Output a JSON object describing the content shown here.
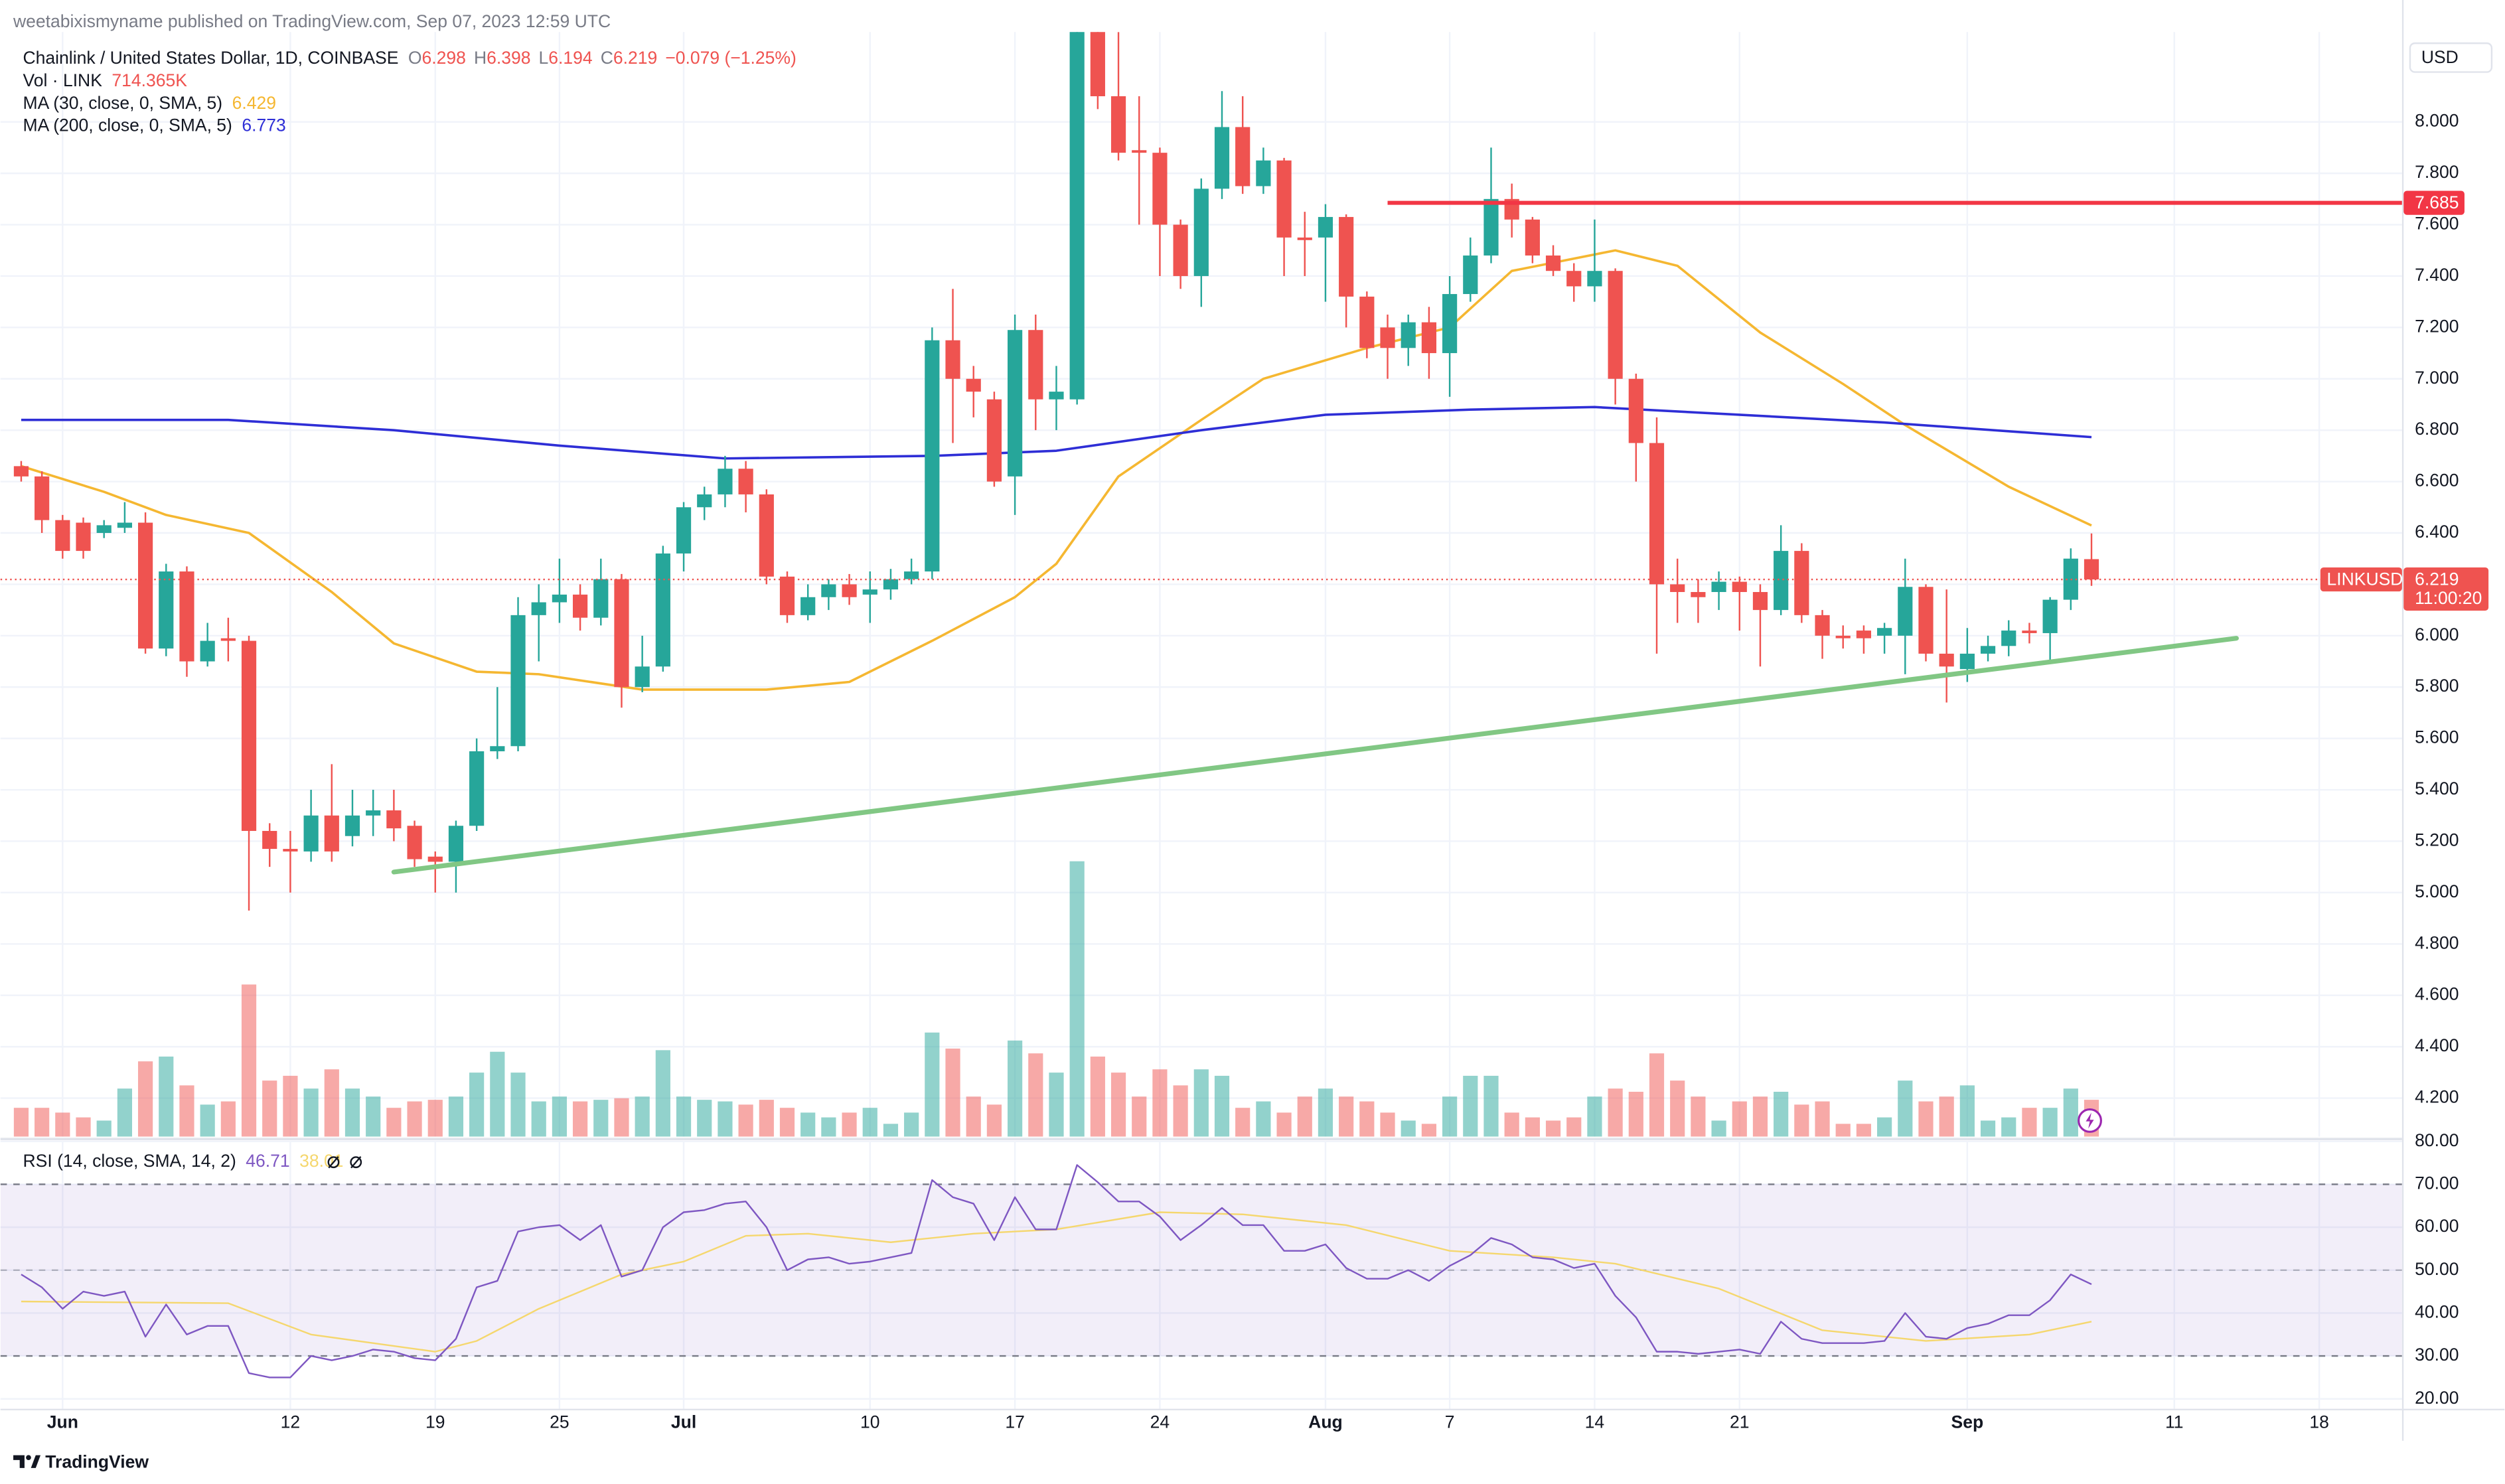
{
  "published": "weetabixismyname published on TradingView.com, Sep 07, 2023 12:59 UTC",
  "footer": "TradingView",
  "chart_data": {
    "type": "candlestick",
    "title": "Chainlink / United States Dollar, 1D, COINBASE",
    "ohlc_letters": [
      "O",
      "H",
      "L",
      "C"
    ],
    "change": "−0.079 (−1.25%)",
    "currency": "USD",
    "symbol": "LINKUSD",
    "countdown": "11:00:20",
    "up_color": "#26a69a",
    "down_color": "#ef5350",
    "x": [
      "2023-05-30",
      "2023-05-31",
      "2023-06-01",
      "2023-06-02",
      "2023-06-03",
      "2023-06-04",
      "2023-06-05",
      "2023-06-06",
      "2023-06-07",
      "2023-06-08",
      "2023-06-09",
      "2023-06-10",
      "2023-06-11",
      "2023-06-12",
      "2023-06-13",
      "2023-06-14",
      "2023-06-15",
      "2023-06-16",
      "2023-06-17",
      "2023-06-18",
      "2023-06-19",
      "2023-06-20",
      "2023-06-21",
      "2023-06-22",
      "2023-06-23",
      "2023-06-24",
      "2023-06-25",
      "2023-06-26",
      "2023-06-27",
      "2023-06-28",
      "2023-06-29",
      "2023-06-30",
      "2023-07-01",
      "2023-07-02",
      "2023-07-03",
      "2023-07-04",
      "2023-07-05",
      "2023-07-06",
      "2023-07-07",
      "2023-07-08",
      "2023-07-09",
      "2023-07-10",
      "2023-07-11",
      "2023-07-12",
      "2023-07-13",
      "2023-07-14",
      "2023-07-15",
      "2023-07-16",
      "2023-07-17",
      "2023-07-18",
      "2023-07-19",
      "2023-07-20",
      "2023-07-21",
      "2023-07-22",
      "2023-07-23",
      "2023-07-24",
      "2023-07-25",
      "2023-07-26",
      "2023-07-27",
      "2023-07-28",
      "2023-07-29",
      "2023-07-30",
      "2023-07-31",
      "2023-08-01",
      "2023-08-02",
      "2023-08-03",
      "2023-08-04",
      "2023-08-05",
      "2023-08-06",
      "2023-08-07",
      "2023-08-08",
      "2023-08-09",
      "2023-08-10",
      "2023-08-11",
      "2023-08-12",
      "2023-08-13",
      "2023-08-14",
      "2023-08-15",
      "2023-08-16",
      "2023-08-17",
      "2023-08-18",
      "2023-08-19",
      "2023-08-20",
      "2023-08-21",
      "2023-08-22",
      "2023-08-23",
      "2023-08-24",
      "2023-08-25",
      "2023-08-26",
      "2023-08-27",
      "2023-08-28",
      "2023-08-29",
      "2023-08-30",
      "2023-08-31",
      "2023-09-01",
      "2023-09-02",
      "2023-09-03",
      "2023-09-04",
      "2023-09-05",
      "2023-09-06",
      "2023-09-07"
    ],
    "open": [
      6.66,
      6.62,
      6.45,
      6.44,
      6.4,
      6.42,
      6.44,
      5.95,
      6.25,
      5.9,
      5.99,
      5.98,
      5.24,
      5.17,
      5.16,
      5.3,
      5.22,
      5.3,
      5.32,
      5.26,
      5.14,
      5.12,
      5.26,
      5.55,
      5.57,
      6.08,
      6.13,
      6.16,
      6.07,
      6.22,
      5.8,
      5.88,
      6.32,
      6.5,
      6.55,
      6.65,
      6.55,
      6.23,
      6.08,
      6.15,
      6.2,
      6.16,
      6.18,
      6.22,
      6.25,
      7.15,
      7.0,
      6.92,
      6.62,
      7.19,
      6.92,
      6.92,
      8.4,
      8.1,
      7.89,
      7.88,
      7.6,
      7.4,
      7.74,
      7.98,
      7.75,
      7.85,
      7.55,
      7.55,
      7.63,
      7.32,
      7.2,
      7.12,
      7.22,
      7.1,
      7.33,
      7.48,
      7.7,
      7.62,
      7.48,
      7.42,
      7.36,
      7.42,
      7.0,
      6.75,
      6.2,
      6.17,
      6.17,
      6.21,
      6.17,
      6.1,
      6.33,
      6.08,
      6.0,
      6.02,
      6.0,
      6.0,
      6.19,
      5.93,
      5.87,
      5.93,
      5.96,
      6.02,
      6.01,
      6.14,
      6.298
    ],
    "high": [
      6.68,
      6.64,
      6.47,
      6.46,
      6.45,
      6.52,
      6.48,
      6.28,
      6.27,
      6.05,
      6.07,
      6.0,
      5.27,
      5.24,
      5.4,
      5.5,
      5.4,
      5.4,
      5.4,
      5.28,
      5.16,
      5.28,
      5.6,
      5.8,
      6.15,
      6.2,
      6.3,
      6.2,
      6.3,
      6.24,
      6.0,
      6.35,
      6.52,
      6.58,
      6.7,
      6.68,
      6.57,
      6.25,
      6.2,
      6.22,
      6.24,
      6.25,
      6.26,
      6.3,
      7.2,
      7.35,
      7.05,
      6.95,
      7.25,
      7.25,
      7.05,
      8.6,
      8.45,
      8.35,
      8.1,
      7.9,
      7.62,
      7.78,
      8.12,
      8.1,
      7.9,
      7.86,
      7.65,
      7.68,
      7.64,
      7.34,
      7.25,
      7.25,
      7.28,
      7.4,
      7.55,
      7.9,
      7.76,
      7.63,
      7.52,
      7.45,
      7.62,
      7.43,
      7.02,
      6.85,
      6.3,
      6.22,
      6.25,
      6.23,
      6.2,
      6.43,
      6.36,
      6.1,
      6.04,
      6.04,
      6.05,
      6.3,
      6.2,
      6.18,
      6.03,
      6.0,
      6.06,
      6.05,
      6.15,
      6.34,
      6.398
    ],
    "low": [
      6.6,
      6.4,
      6.3,
      6.3,
      6.38,
      6.4,
      5.93,
      5.92,
      5.84,
      5.88,
      5.9,
      4.93,
      5.1,
      5.0,
      5.12,
      5.12,
      5.18,
      5.22,
      5.2,
      5.1,
      5.0,
      5.0,
      5.24,
      5.52,
      5.55,
      5.9,
      6.05,
      6.02,
      6.04,
      5.72,
      5.78,
      5.86,
      6.25,
      6.45,
      6.5,
      6.48,
      6.2,
      6.05,
      6.06,
      6.1,
      6.12,
      6.05,
      6.14,
      6.2,
      6.22,
      6.75,
      6.85,
      6.58,
      6.47,
      6.8,
      6.8,
      6.9,
      8.05,
      7.85,
      7.6,
      7.4,
      7.35,
      7.28,
      7.7,
      7.72,
      7.72,
      7.4,
      7.4,
      7.3,
      7.2,
      7.08,
      7.0,
      7.05,
      7.0,
      6.93,
      7.3,
      7.45,
      7.55,
      7.45,
      7.4,
      7.3,
      7.3,
      6.9,
      6.6,
      5.93,
      6.05,
      6.05,
      6.1,
      6.02,
      5.88,
      6.08,
      6.05,
      5.91,
      5.95,
      5.93,
      5.93,
      5.85,
      5.9,
      5.74,
      5.82,
      5.9,
      5.92,
      5.97,
      5.89,
      6.1,
      6.194
    ],
    "close": [
      6.62,
      6.45,
      6.33,
      6.33,
      6.43,
      6.44,
      5.95,
      6.25,
      5.9,
      5.98,
      5.98,
      5.24,
      5.17,
      5.16,
      5.3,
      5.16,
      5.3,
      5.32,
      5.25,
      5.13,
      5.12,
      5.26,
      5.55,
      5.57,
      6.08,
      6.13,
      6.16,
      6.07,
      6.22,
      5.8,
      5.88,
      6.32,
      6.5,
      6.55,
      6.65,
      6.55,
      6.23,
      6.08,
      6.15,
      6.2,
      6.15,
      6.18,
      6.22,
      6.25,
      7.15,
      7.0,
      6.95,
      6.6,
      7.19,
      6.92,
      6.95,
      8.4,
      8.1,
      7.88,
      7.88,
      7.6,
      7.4,
      7.74,
      7.98,
      7.75,
      7.85,
      7.55,
      7.54,
      7.63,
      7.32,
      7.12,
      7.12,
      7.22,
      7.1,
      7.33,
      7.48,
      7.7,
      7.62,
      7.48,
      7.42,
      7.36,
      7.42,
      7.0,
      6.75,
      6.2,
      6.17,
      6.15,
      6.21,
      6.17,
      6.1,
      6.33,
      6.08,
      6.0,
      5.99,
      5.99,
      6.03,
      6.19,
      5.93,
      5.88,
      5.93,
      5.96,
      6.02,
      6.01,
      6.14,
      6.3,
      6.219
    ],
    "volume": {
      "name": "Vol · LINK",
      "last_value_label": "714.365K",
      "values": [
        559000,
        559000,
        466000,
        373000,
        311000,
        932000,
        1460000,
        1553000,
        994000,
        621000,
        683000,
        2951000,
        1087000,
        1180000,
        932000,
        1305000,
        932000,
        777000,
        559000,
        683000,
        714000,
        777000,
        1242000,
        1646000,
        1242000,
        683000,
        777000,
        683000,
        714000,
        745000,
        777000,
        1677000,
        777000,
        714000,
        683000,
        621000,
        714000,
        559000,
        466000,
        373000,
        466000,
        559000,
        248000,
        466000,
        2019000,
        1708000,
        777000,
        621000,
        1864000,
        1615000,
        1242000,
        5342000,
        1553000,
        1242000,
        777000,
        1305000,
        994000,
        1305000,
        1180000,
        559000,
        683000,
        466000,
        777000,
        932000,
        777000,
        683000,
        466000,
        311000,
        248000,
        777000,
        1180000,
        1180000,
        466000,
        373000,
        311000,
        373000,
        777000,
        932000,
        870000,
        1615000,
        1087000,
        777000,
        311000,
        683000,
        777000,
        870000,
        621000,
        683000,
        248000,
        248000,
        373000,
        1087000,
        683000,
        777000,
        994000,
        311000,
        373000,
        559000,
        559000,
        932000,
        714365
      ]
    },
    "overlays": [
      {
        "name": "MA (30, close, 0, SMA, 5)",
        "color": "#f5b731",
        "x": [
          "2023-05-30",
          "2023-06-03",
          "2023-06-06",
          "2023-06-10",
          "2023-06-14",
          "2023-06-17",
          "2023-06-21",
          "2023-06-24",
          "2023-06-29",
          "2023-07-05",
          "2023-07-09",
          "2023-07-13",
          "2023-07-17",
          "2023-07-19",
          "2023-07-22",
          "2023-07-26",
          "2023-07-29",
          "2023-08-03",
          "2023-08-07",
          "2023-08-10",
          "2023-08-15",
          "2023-08-18",
          "2023-08-22",
          "2023-08-26",
          "2023-08-29",
          "2023-09-03",
          "2023-09-07"
        ],
        "values": [
          6.66,
          6.56,
          6.47,
          6.4,
          6.17,
          5.97,
          5.86,
          5.85,
          5.79,
          5.79,
          5.82,
          5.98,
          6.15,
          6.28,
          6.62,
          6.84,
          7.0,
          7.12,
          7.2,
          7.42,
          7.5,
          7.44,
          7.18,
          6.98,
          6.82,
          6.58,
          6.429
        ]
      },
      {
        "name": "MA (200, close, 0, SMA, 5)",
        "color": "#2e2ed6",
        "x": [
          "2023-05-30",
          "2023-06-09",
          "2023-06-17",
          "2023-06-25",
          "2023-07-03",
          "2023-07-13",
          "2023-07-19",
          "2023-07-26",
          "2023-08-01",
          "2023-08-08",
          "2023-08-14",
          "2023-08-21",
          "2023-08-28",
          "2023-09-07"
        ],
        "values": [
          6.84,
          6.84,
          6.8,
          6.74,
          6.69,
          6.7,
          6.72,
          6.8,
          6.86,
          6.88,
          6.89,
          6.86,
          6.83,
          6.773
        ]
      }
    ],
    "drawings": [
      {
        "color": "#f23645",
        "x": [
          "2023-08-04"
        ],
        "values": [
          7.685
        ],
        "extend": "right"
      },
      {
        "color": "#81c784",
        "x": [
          "2023-06-17",
          "2023-09-14"
        ],
        "values": [
          5.08,
          5.99
        ]
      }
    ],
    "xlim": [
      "2023-05-29",
      "2023-09-22"
    ],
    "ylim": [
      4.05,
      8.35
    ],
    "yticks": [
      {
        "value": 4.2,
        "label": "4.200"
      },
      {
        "value": 4.4,
        "label": "4.400"
      },
      {
        "value": 4.6,
        "label": "4.600"
      },
      {
        "value": 4.8,
        "label": "4.800"
      },
      {
        "value": 5,
        "label": "5.000"
      },
      {
        "value": 5.2,
        "label": "5.200"
      },
      {
        "value": 5.4,
        "label": "5.400"
      },
      {
        "value": 5.6,
        "label": "5.600"
      },
      {
        "value": 5.8,
        "label": "5.800"
      },
      {
        "value": 6,
        "label": "6.000"
      },
      {
        "value": 6.2,
        "label": "6.200"
      },
      {
        "value": 6.4,
        "label": "6.400"
      },
      {
        "value": 6.6,
        "label": "6.600"
      },
      {
        "value": 6.8,
        "label": "6.800"
      },
      {
        "value": 7,
        "label": "7.000"
      },
      {
        "value": 7.2,
        "label": "7.200"
      },
      {
        "value": 7.4,
        "label": "7.400"
      },
      {
        "value": 7.6,
        "label": "7.600"
      },
      {
        "value": 7.8,
        "label": "7.800"
      },
      {
        "value": 8,
        "label": "8.000"
      }
    ],
    "xticks": [
      {
        "value": "2023-06-01",
        "label": "Jun"
      },
      {
        "value": "2023-06-12",
        "label": "12"
      },
      {
        "value": "2023-06-19",
        "label": "19"
      },
      {
        "value": "2023-06-25",
        "label": "25"
      },
      {
        "value": "2023-07-01",
        "label": "Jul"
      },
      {
        "value": "2023-07-10",
        "label": "10"
      },
      {
        "value": "2023-07-17",
        "label": "17"
      },
      {
        "value": "2023-07-24",
        "label": "24"
      },
      {
        "value": "2023-08-01",
        "label": "Aug"
      },
      {
        "value": "2023-08-07",
        "label": "7"
      },
      {
        "value": "2023-08-14",
        "label": "14"
      },
      {
        "value": "2023-08-21",
        "label": "21"
      },
      {
        "value": "2023-09-01",
        "label": "Sep"
      },
      {
        "value": "2023-09-11",
        "label": "11"
      },
      {
        "value": "2023-09-18",
        "label": "18"
      }
    ],
    "grid": true,
    "rsi": {
      "name": "RSI (14, close, SMA, 14, 2)",
      "color": "#7e57c2",
      "values": [
        49,
        46,
        41,
        45,
        44,
        45,
        34.5,
        42,
        35,
        37,
        37,
        26,
        25,
        25,
        30,
        29,
        30,
        31.5,
        31,
        29.5,
        29,
        34,
        46,
        47.5,
        59,
        60,
        60.5,
        57,
        60.5,
        48.5,
        50,
        60,
        63.5,
        64,
        65.5,
        66,
        60,
        50,
        52.5,
        53,
        51.5,
        52,
        53,
        54,
        71,
        67,
        65.5,
        57,
        67,
        59.5,
        59.5,
        74.5,
        70.5,
        66,
        66,
        62.5,
        57,
        60.5,
        64.5,
        60.5,
        60.5,
        54.5,
        54.5,
        56,
        50.5,
        48,
        48,
        50,
        47.5,
        51,
        53.5,
        57.5,
        56,
        53,
        52.5,
        50.5,
        51.5,
        44,
        39,
        31,
        31,
        30.5,
        31,
        31.5,
        30.5,
        38,
        34,
        33,
        33,
        33,
        33.5,
        40,
        34.5,
        34,
        36.5,
        37.5,
        39.5,
        39.5,
        43,
        49,
        46.71
      ],
      "ma": {
        "color": "#f5d76e",
        "x": [
          "2023-05-30",
          "2023-06-09",
          "2023-06-13",
          "2023-06-19",
          "2023-06-21",
          "2023-06-24",
          "2023-06-28",
          "2023-07-01",
          "2023-07-04",
          "2023-07-07",
          "2023-07-11",
          "2023-07-15",
          "2023-07-19",
          "2023-07-24",
          "2023-07-28",
          "2023-08-02",
          "2023-08-07",
          "2023-08-12",
          "2023-08-15",
          "2023-08-20",
          "2023-08-25",
          "2023-08-30",
          "2023-09-04",
          "2023-09-07"
        ],
        "values": [
          42.7,
          42.3,
          35,
          31,
          33.5,
          41,
          49,
          52,
          58,
          58.5,
          56.5,
          58.5,
          59.5,
          63.5,
          63,
          60.5,
          54.5,
          53,
          51.5,
          45.7,
          36,
          33.5,
          35,
          38.01
        ]
      },
      "ylim": [
        17.7,
        80
      ],
      "yticks": [
        {
          "value": 20,
          "label": "20.00"
        },
        {
          "value": 30,
          "label": "30.00"
        },
        {
          "value": 40,
          "label": "40.00"
        },
        {
          "value": 50,
          "label": "50.00"
        },
        {
          "value": 60,
          "label": "60.00"
        },
        {
          "value": 70,
          "label": "70.00"
        },
        {
          "value": 80,
          "label": "80.00"
        }
      ],
      "levels": [
        70,
        50,
        30
      ],
      "band": [
        30,
        70
      ]
    }
  }
}
